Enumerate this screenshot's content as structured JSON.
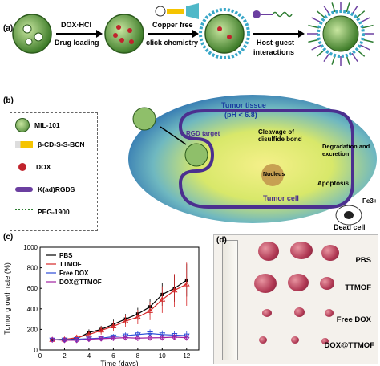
{
  "panel_a": {
    "label": "(a)",
    "step1_top": "DOX·HCl",
    "step1_bottom": "Drug loading",
    "step2_top": "Copper free",
    "step2_bottom": "click chemistry",
    "step3_top": "Host-guest",
    "step3_bottom": "interactions"
  },
  "panel_b": {
    "label": "(b)",
    "legend": [
      "MIL-101",
      "β-CD-S-S-BCN",
      "DOX",
      "K(ad)RGDS",
      "PEG-1900"
    ],
    "tumor_tissue": "Tumor tissue",
    "ph": "(pH < 6.8)",
    "rgd_target": "RGD target",
    "cleavage": "Cleavage of disulfide bond",
    "degradation": "Degradation and excretion",
    "apoptosis": "Apoptosis",
    "nucleus": "Nucleus",
    "tumor_cell": "Tumor cell",
    "fe": "Fe3+",
    "dead_cell": "Dead cell"
  },
  "panel_c": {
    "label": "(c)",
    "colors": {
      "PBS": "#000000",
      "TTMOF": "#d62728",
      "Free DOX": "#2a4bd7",
      "DOX@TTMOF": "#a020a0"
    }
  },
  "chart_data": {
    "type": "line",
    "xlabel": "Time (days)",
    "ylabel": "Tumor growth rate (%)",
    "xlim": [
      0,
      13
    ],
    "ylim": [
      0,
      1000
    ],
    "xticks": [
      0,
      2,
      4,
      6,
      8,
      10,
      12
    ],
    "yticks": [
      0,
      200,
      400,
      600,
      800,
      1000
    ],
    "series": [
      {
        "name": "PBS",
        "x": [
          1,
          2,
          3,
          4,
          5,
          6,
          7,
          8,
          9,
          10,
          11,
          12
        ],
        "y": [
          100,
          105,
          110,
          170,
          200,
          250,
          300,
          350,
          420,
          540,
          600,
          680
        ],
        "err": [
          5,
          10,
          15,
          30,
          35,
          45,
          50,
          60,
          80,
          110,
          130,
          160
        ]
      },
      {
        "name": "TTMOF",
        "x": [
          1,
          2,
          3,
          4,
          5,
          6,
          7,
          8,
          9,
          10,
          11,
          12
        ],
        "y": [
          100,
          102,
          120,
          150,
          190,
          230,
          280,
          320,
          380,
          490,
          580,
          640
        ],
        "err": [
          5,
          10,
          20,
          30,
          40,
          50,
          60,
          70,
          90,
          130,
          160,
          210
        ]
      },
      {
        "name": "Free DOX",
        "x": [
          1,
          2,
          3,
          4,
          5,
          6,
          7,
          8,
          9,
          10,
          11,
          12
        ],
        "y": [
          100,
          100,
          105,
          110,
          115,
          130,
          140,
          150,
          160,
          150,
          145,
          140
        ],
        "err": [
          5,
          8,
          10,
          15,
          20,
          25,
          30,
          35,
          40,
          40,
          40,
          40
        ]
      },
      {
        "name": "DOX@TTMOF",
        "x": [
          1,
          2,
          3,
          4,
          5,
          6,
          7,
          8,
          9,
          10,
          11,
          12
        ],
        "y": [
          100,
          95,
          95,
          105,
          110,
          115,
          120,
          115,
          118,
          120,
          125,
          120
        ],
        "err": [
          5,
          8,
          10,
          12,
          15,
          18,
          20,
          22,
          25,
          28,
          30,
          30
        ]
      }
    ]
  },
  "panel_d": {
    "label": "(d)",
    "rows": [
      "PBS",
      "TTMOF",
      "Free DOX",
      "DOX@TTMOF"
    ]
  }
}
